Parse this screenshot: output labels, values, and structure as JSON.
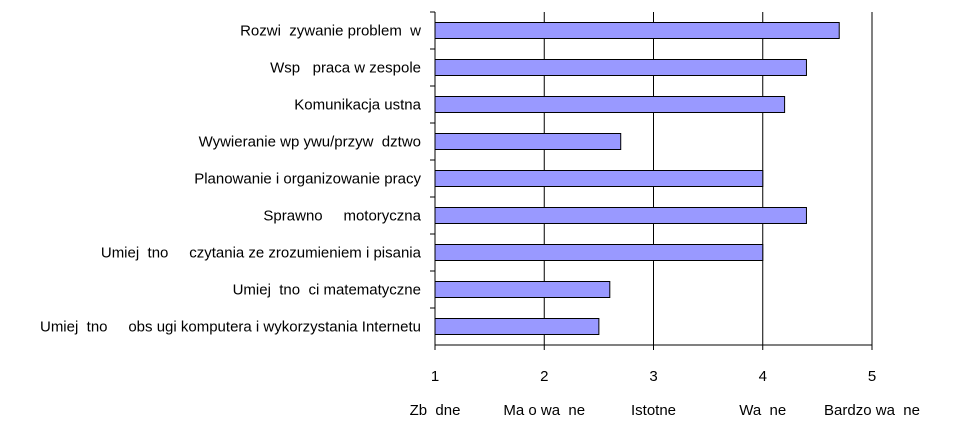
{
  "chart_data": {
    "type": "bar",
    "orientation": "horizontal",
    "title": "",
    "xlabel": "",
    "ylabel": "",
    "categories": [
      "Rozwi  zywanie problem  w",
      "Wsp   praca w zespole",
      "Komunikacja ustna",
      "Wywieranie wp ywu/przyw  dztwo",
      "Planowanie i organizowanie pracy",
      "Sprawno     motoryczna",
      "Umiej  tno     czytania ze zrozumieniem i pisania",
      "Umiej  tno  ci matematyczne",
      "Umiej  tno     obs ugi komputera i wykorzystania Internetu"
    ],
    "values": [
      4.7,
      4.4,
      4.2,
      2.7,
      4.0,
      4.4,
      4.0,
      2.6,
      2.5
    ],
    "xlim": [
      1,
      5
    ],
    "x_ticks": [
      1,
      2,
      3,
      4,
      5
    ],
    "x_tick_labels": [
      "1",
      "2",
      "3",
      "4",
      "5"
    ],
    "scale_labels": [
      "Zb  dne",
      "Ma o wa  ne",
      "Istotne",
      "Wa  ne",
      "Bardzo wa  ne"
    ],
    "grid": "vertical",
    "legend": "none",
    "colors": {
      "bar_fill": "#9999ff",
      "bar_stroke": "#000000",
      "grid": "#000000"
    }
  }
}
